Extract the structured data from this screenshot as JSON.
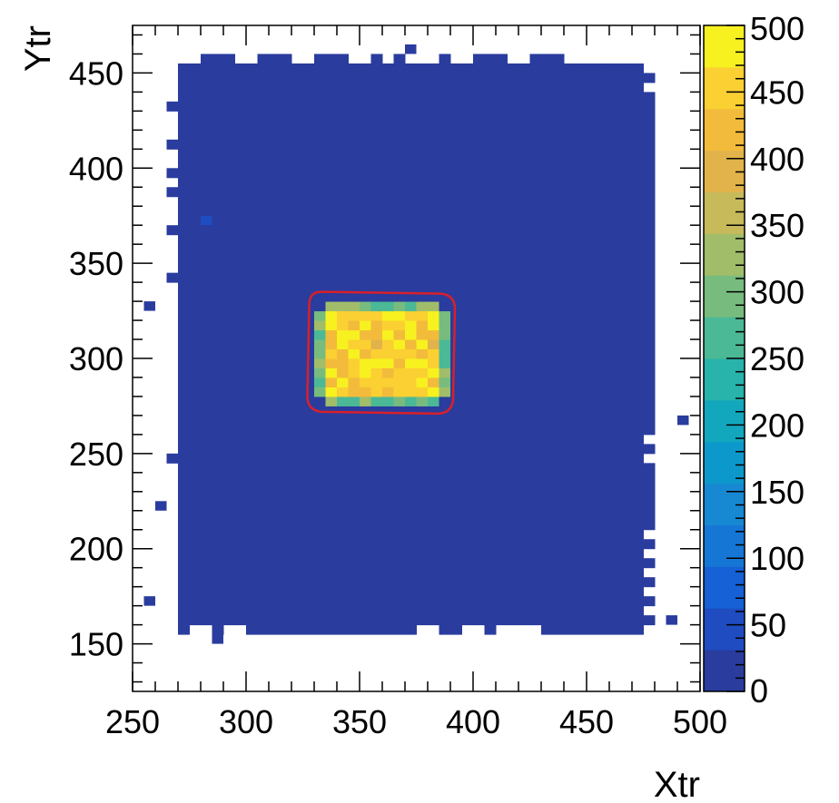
{
  "chart_data": {
    "type": "heatmap",
    "title": "",
    "xlabel": "Xtr",
    "ylabel": "Ytr",
    "xlim": [
      250,
      500
    ],
    "ylim": [
      125,
      475
    ],
    "x_ticks": [
      "250",
      "300",
      "350",
      "400",
      "450",
      "500"
    ],
    "y_ticks": [
      "150",
      "200",
      "250",
      "300",
      "350",
      "400",
      "450"
    ],
    "z_range": [
      0,
      500
    ],
    "z_ticks": [
      "0",
      "50",
      "100",
      "150",
      "200",
      "250",
      "300",
      "350",
      "400",
      "450",
      "500"
    ],
    "colormap": [
      "#2a3c9e",
      "#1f4cc0",
      "#1561d5",
      "#1676d6",
      "#1788d2",
      "#0d98cb",
      "#13a7be",
      "#28b3ab",
      "#4bb995",
      "#77bc7e",
      "#a1bd6a",
      "#c6ba5a",
      "#e2b34a",
      "#f3bb3b",
      "#fbd032",
      "#f7f120"
    ],
    "bin_width": 5,
    "background_value": 0,
    "background_region": {
      "x": [
        270,
        480
      ],
      "y": [
        155,
        455
      ]
    },
    "hot_region": {
      "x": [
        330,
        390
      ],
      "y": [
        275,
        330
      ]
    },
    "hot_value_range": [
      400,
      500
    ],
    "border_bins_approx_value": 250,
    "outlier_bins": [
      {
        "x": 372,
        "y": 462,
        "value": 5
      },
      {
        "x": 258,
        "y": 327,
        "value": 5
      },
      {
        "x": 283,
        "y": 372,
        "value": 50
      },
      {
        "x": 262,
        "y": 222,
        "value": 5
      },
      {
        "x": 258,
        "y": 172,
        "value": 5
      },
      {
        "x": 287,
        "y": 152,
        "value": 5
      },
      {
        "x": 492,
        "y": 267,
        "value": 5
      },
      {
        "x": 485,
        "y": 162,
        "value": 5
      }
    ],
    "contour_color": "#d8202a",
    "contour_shape": "rounded rectangle approximately x 327-392, y 271-335",
    "legend": "colorbar right"
  }
}
